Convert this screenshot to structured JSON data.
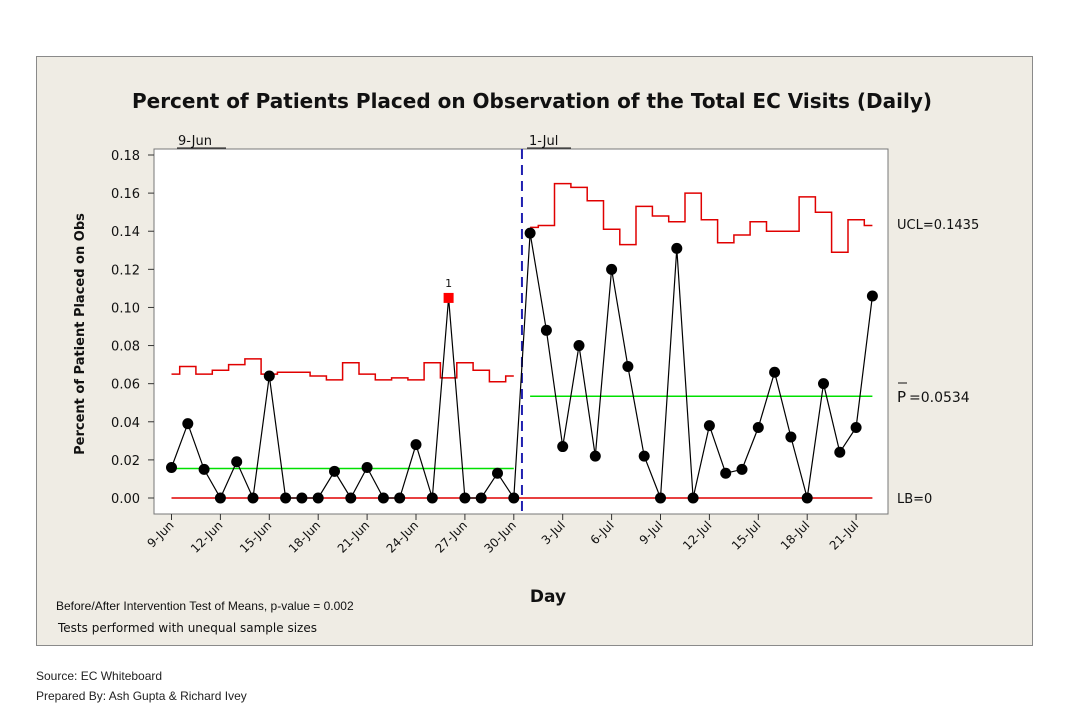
{
  "chart_data": {
    "type": "line",
    "title": "Percent of Patients Placed on Observation of the Total EC Visits (Daily)",
    "xlabel": "Day",
    "ylabel": "Percent of Patient Placed on Obs",
    "ylim": [
      0,
      0.18
    ],
    "y_ticks": [
      "0.00",
      "0.02",
      "0.04",
      "0.06",
      "0.08",
      "0.10",
      "0.12",
      "0.14",
      "0.16",
      "0.18"
    ],
    "x_ticks": [
      {
        "day": 1,
        "label": "9-Jun"
      },
      {
        "day": 4,
        "label": "12-Jun"
      },
      {
        "day": 7,
        "label": "15-Jun"
      },
      {
        "day": 10,
        "label": "18-Jun"
      },
      {
        "day": 13,
        "label": "21-Jun"
      },
      {
        "day": 16,
        "label": "24-Jun"
      },
      {
        "day": 19,
        "label": "27-Jun"
      },
      {
        "day": 22,
        "label": "30-Jun"
      },
      {
        "day": 25,
        "label": "3-Jul"
      },
      {
        "day": 28,
        "label": "6-Jul"
      },
      {
        "day": 31,
        "label": "9-Jul"
      },
      {
        "day": 34,
        "label": "12-Jul"
      },
      {
        "day": 37,
        "label": "15-Jul"
      },
      {
        "day": 40,
        "label": "18-Jul"
      },
      {
        "day": 43,
        "label": "21-Jul"
      }
    ],
    "x_range": [
      1,
      44
    ],
    "values": [
      0.016,
      0.039,
      0.015,
      0,
      0.019,
      0,
      0.064,
      0,
      0,
      0,
      0.014,
      0,
      0.016,
      0,
      0,
      0.028,
      0,
      0.105,
      0,
      0,
      0.013,
      0,
      0.139,
      0.088,
      0.027,
      0.08,
      0.022,
      0.12,
      0.069,
      0.022,
      0,
      0.131,
      0,
      0.038,
      0.013,
      0.015,
      0.037,
      0.066,
      0.032,
      0,
      0.06,
      0.024,
      0.037,
      0.106
    ],
    "ucl": [
      0.065,
      0.069,
      0.065,
      0.067,
      0.07,
      0.073,
      0.065,
      0.066,
      0.066,
      0.064,
      0.062,
      0.071,
      0.065,
      0.062,
      0.063,
      0.062,
      0.071,
      0.063,
      0.071,
      0.067,
      0.061,
      0.064,
      0.142,
      0.143,
      0.165,
      0.163,
      0.156,
      0.141,
      0.133,
      0.153,
      0.148,
      0.145,
      0.16,
      0.146,
      0.134,
      0.138,
      0.145,
      0.14,
      0.14,
      0.158,
      0.15,
      0.129,
      0.146,
      0.143
    ],
    "center_lines": [
      {
        "from": 1,
        "to": 22,
        "value": 0.0155
      },
      {
        "from": 23,
        "to": 44,
        "value": 0.0534
      }
    ],
    "lower_bound": 0,
    "phase_line_day": 22.5,
    "phase_labels": [
      {
        "day": 1,
        "label": "9-Jun"
      },
      {
        "day": 23,
        "label": "1-Jul"
      }
    ],
    "flagged_points": [
      {
        "day": 18,
        "label": "1"
      }
    ],
    "right_labels": {
      "ucl": "UCL=0.1435",
      "center_letter": "P",
      "center_value": "=0.0534",
      "lb": "LB=0"
    },
    "notes": [
      "Before/After Intervention Test of Means, p-value = 0.002",
      "Tests performed with unequal sample sizes"
    ],
    "colors": {
      "point": "#000000",
      "line": "#000000",
      "limit": "#e00000",
      "center": "#00e000",
      "phase": "#2020b0",
      "flag": "#ff0000",
      "plot_bg": "#ffffff",
      "frame_bg": "#efece4"
    }
  },
  "footer": {
    "source": "Source: EC Whiteboard",
    "prepared_by": "Prepared By: Ash Gupta & Richard Ivey"
  }
}
